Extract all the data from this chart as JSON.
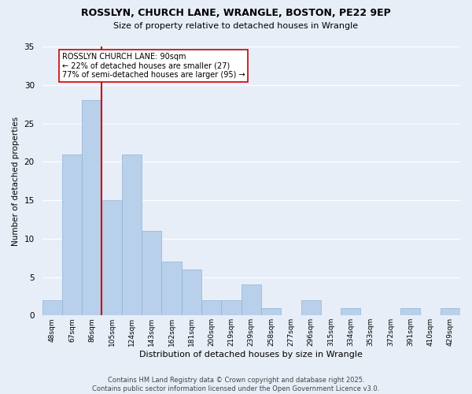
{
  "title1": "ROSSLYN, CHURCH LANE, WRANGLE, BOSTON, PE22 9EP",
  "title2": "Size of property relative to detached houses in Wrangle",
  "xlabel": "Distribution of detached houses by size in Wrangle",
  "ylabel": "Number of detached properties",
  "categories": [
    "48sqm",
    "67sqm",
    "86sqm",
    "105sqm",
    "124sqm",
    "143sqm",
    "162sqm",
    "181sqm",
    "200sqm",
    "219sqm",
    "239sqm",
    "258sqm",
    "277sqm",
    "296sqm",
    "315sqm",
    "334sqm",
    "353sqm",
    "372sqm",
    "391sqm",
    "410sqm",
    "429sqm"
  ],
  "values": [
    2,
    21,
    28,
    15,
    21,
    11,
    7,
    6,
    2,
    2,
    4,
    1,
    0,
    2,
    0,
    1,
    0,
    0,
    1,
    0,
    1
  ],
  "bar_color": "#b8d0ea",
  "bar_edge_color": "#90b4d8",
  "background_color": "#e8eef8",
  "grid_color": "#ffffff",
  "vline_color": "#cc0000",
  "annotation_text": "ROSSLYN CHURCH LANE: 90sqm\n← 22% of detached houses are smaller (27)\n77% of semi-detached houses are larger (95) →",
  "annotation_box_color": "#ffffff",
  "annotation_box_edge": "#cc0000",
  "footer_text": "Contains HM Land Registry data © Crown copyright and database right 2025.\nContains public sector information licensed under the Open Government Licence v3.0.",
  "fig_bg_color": "#e8eef8",
  "ylim": [
    0,
    35
  ],
  "yticks": [
    0,
    5,
    10,
    15,
    20,
    25,
    30,
    35
  ]
}
